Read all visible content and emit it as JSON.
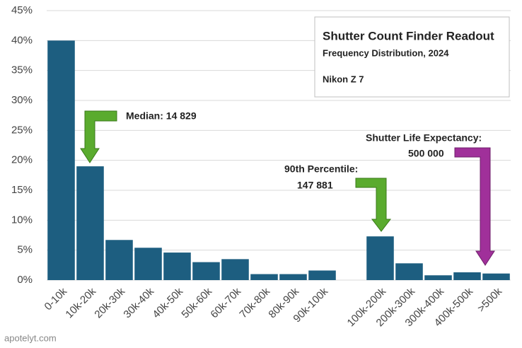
{
  "chart_data": {
    "type": "bar",
    "title": "Shutter Count Finder Readout",
    "subtitle": "Frequency Distribution, 2024",
    "camera": "Nikon Z 7",
    "categories": [
      "0-10k",
      "10k-20k",
      "20k-30k",
      "30k-40k",
      "40k-50k",
      "50k-60k",
      "60k-70k",
      "70k-80k",
      "80k-90k",
      "90k-100k",
      null,
      "100k-200k",
      "200k-300k",
      "300k-400k",
      "400k-500k",
      ">500k"
    ],
    "values": [
      40,
      19,
      6.7,
      5.4,
      4.6,
      3.0,
      3.5,
      1.0,
      1.0,
      1.6,
      null,
      7.3,
      2.8,
      0.8,
      1.3,
      1.1
    ],
    "color": "#1d5e80",
    "ylim": [
      0,
      45
    ],
    "yticks": [
      {
        "value": 0,
        "label": "0%"
      },
      {
        "value": 5,
        "label": "5%"
      },
      {
        "value": 10,
        "label": "10%"
      },
      {
        "value": 15,
        "label": "15%"
      },
      {
        "value": 20,
        "label": "20%"
      },
      {
        "value": 25,
        "label": "25%"
      },
      {
        "value": 30,
        "label": "30%"
      },
      {
        "value": 35,
        "label": "35%"
      },
      {
        "value": 40,
        "label": "40%"
      },
      {
        "value": 45,
        "label": "45%"
      }
    ],
    "grid": true,
    "annotations": [
      "Median: 14 829",
      "90th Percentile:",
      "147 881",
      "Shutter Life Expectancy:",
      "500 000"
    ],
    "watermark": "apotelyt.com"
  }
}
